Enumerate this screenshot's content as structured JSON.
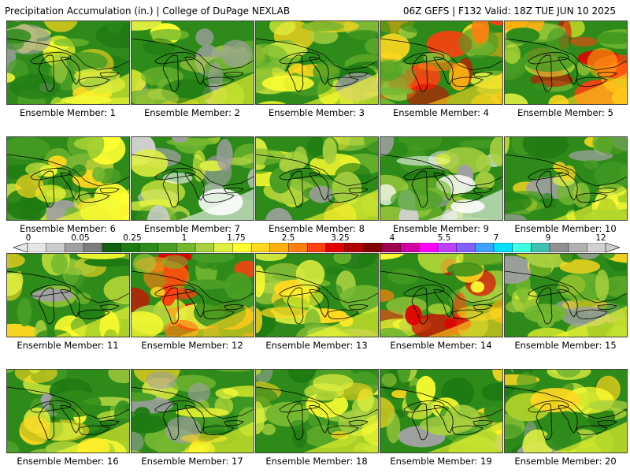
{
  "header": {
    "left_title": "Precipitation Accumulation (in.) | College of DuPage NEXLAB",
    "right_title": "06Z GEFS | F132 Valid: 18Z TUE JUN 10 2025"
  },
  "members": [
    {
      "label": "Ensemble Member: 1",
      "palette": "moderate"
    },
    {
      "label": "Ensemble Member: 2",
      "palette": "moderate"
    },
    {
      "label": "Ensemble Member: 3",
      "palette": "moderate"
    },
    {
      "label": "Ensemble Member: 4",
      "palette": "heavy"
    },
    {
      "label": "Ensemble Member: 5",
      "palette": "heavy"
    },
    {
      "label": "Ensemble Member: 6",
      "palette": "moderate"
    },
    {
      "label": "Ensemble Member: 7",
      "palette": "light"
    },
    {
      "label": "Ensemble Member: 8",
      "palette": "moderate"
    },
    {
      "label": "Ensemble Member: 9",
      "palette": "light"
    },
    {
      "label": "Ensemble Member: 10",
      "palette": "moderate"
    },
    {
      "label": "Ensemble Member: 11",
      "palette": "moderate"
    },
    {
      "label": "Ensemble Member: 12",
      "palette": "heavy"
    },
    {
      "label": "Ensemble Member: 13",
      "palette": "moderate"
    },
    {
      "label": "Ensemble Member: 14",
      "palette": "heavy"
    },
    {
      "label": "Ensemble Member: 15",
      "palette": "moderate"
    },
    {
      "label": "Ensemble Member: 16",
      "palette": "moderate"
    },
    {
      "label": "Ensemble Member: 17",
      "palette": "moderate"
    },
    {
      "label": "Ensemble Member: 18",
      "palette": "moderate"
    },
    {
      "label": "Ensemble Member: 19",
      "palette": "moderate"
    },
    {
      "label": "Ensemble Member: 20",
      "palette": "moderate"
    }
  ],
  "scale": {
    "labels": [
      "0",
      "0.05",
      "0.25",
      "1",
      "1.75",
      "2.5",
      "3.25",
      "4",
      "5.5",
      "7",
      "9",
      "12"
    ],
    "colors": [
      "#e6e6e6",
      "#cccccc",
      "#a0a0a0",
      "#7d7d7d",
      "#106010",
      "#1e7a12",
      "#2e8b1a",
      "#4a9e25",
      "#74b830",
      "#a8d040",
      "#e0f040",
      "#ffff30",
      "#ffd820",
      "#ffb010",
      "#ff8010",
      "#ff4010",
      "#e00000",
      "#b00000",
      "#800000",
      "#a00050",
      "#d000a0",
      "#ff00ff",
      "#c040ff",
      "#8060ff",
      "#40a0ff",
      "#00e0ff",
      "#40ffe0",
      "#40c0b0",
      "#909090",
      "#b0b0b0",
      "#d0d0d0"
    ],
    "colors_pointer": "#cccccc"
  },
  "palettes": {
    "light": [
      "#2e8b1a",
      "#1e7a12",
      "#4a9e25",
      "#74b830",
      "#a0a0a0",
      "#d0d0d0",
      "#ffffff",
      "#a8d040",
      "#e0f040"
    ],
    "moderate": [
      "#2e8b1a",
      "#1e7a12",
      "#4a9e25",
      "#74b830",
      "#a8d040",
      "#e0f040",
      "#ffff30",
      "#ffd820",
      "#a0a0a0"
    ],
    "heavy": [
      "#2e8b1a",
      "#4a9e25",
      "#74b830",
      "#a8d040",
      "#e0f040",
      "#ffff30",
      "#ffd820",
      "#ffb010",
      "#ff8010",
      "#ff4010",
      "#e00000"
    ]
  }
}
